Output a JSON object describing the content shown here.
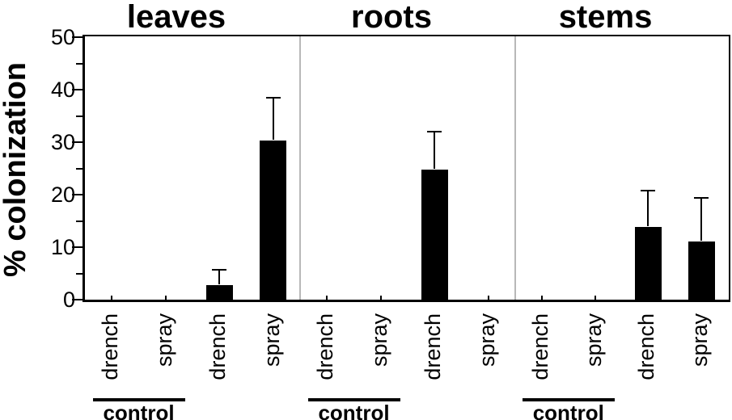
{
  "figure": {
    "ylabel": "% colonization",
    "background_color": "#ffffff",
    "bar_color": "#000000",
    "axis_color": "#000000",
    "divider_color": "#b8b8b8"
  },
  "chart_data": {
    "type": "bar",
    "title": "",
    "xlabel": "",
    "ylabel": "% colonization",
    "ylim": [
      0,
      50
    ],
    "yticks": [
      0,
      10,
      20,
      30,
      40,
      50
    ],
    "minor_ytick_step": 5,
    "grid": false,
    "legend": null,
    "error_bars": "upper only, caps",
    "categories": [
      "drench",
      "spray",
      "drench",
      "spray"
    ],
    "group_label": "control",
    "group_span_categories": [
      0,
      1
    ],
    "panels": [
      {
        "title": "leaves",
        "values": [
          0,
          0,
          2.7,
          30.3
        ],
        "errors_up": [
          0,
          0,
          2.9,
          8.0
        ]
      },
      {
        "title": "roots",
        "values": [
          0,
          0,
          24.8,
          0
        ],
        "errors_up": [
          0,
          0,
          7.0,
          0
        ]
      },
      {
        "title": "stems",
        "values": [
          0,
          0,
          13.8,
          11.1
        ],
        "errors_up": [
          0,
          0,
          6.8,
          8.2
        ]
      }
    ]
  }
}
